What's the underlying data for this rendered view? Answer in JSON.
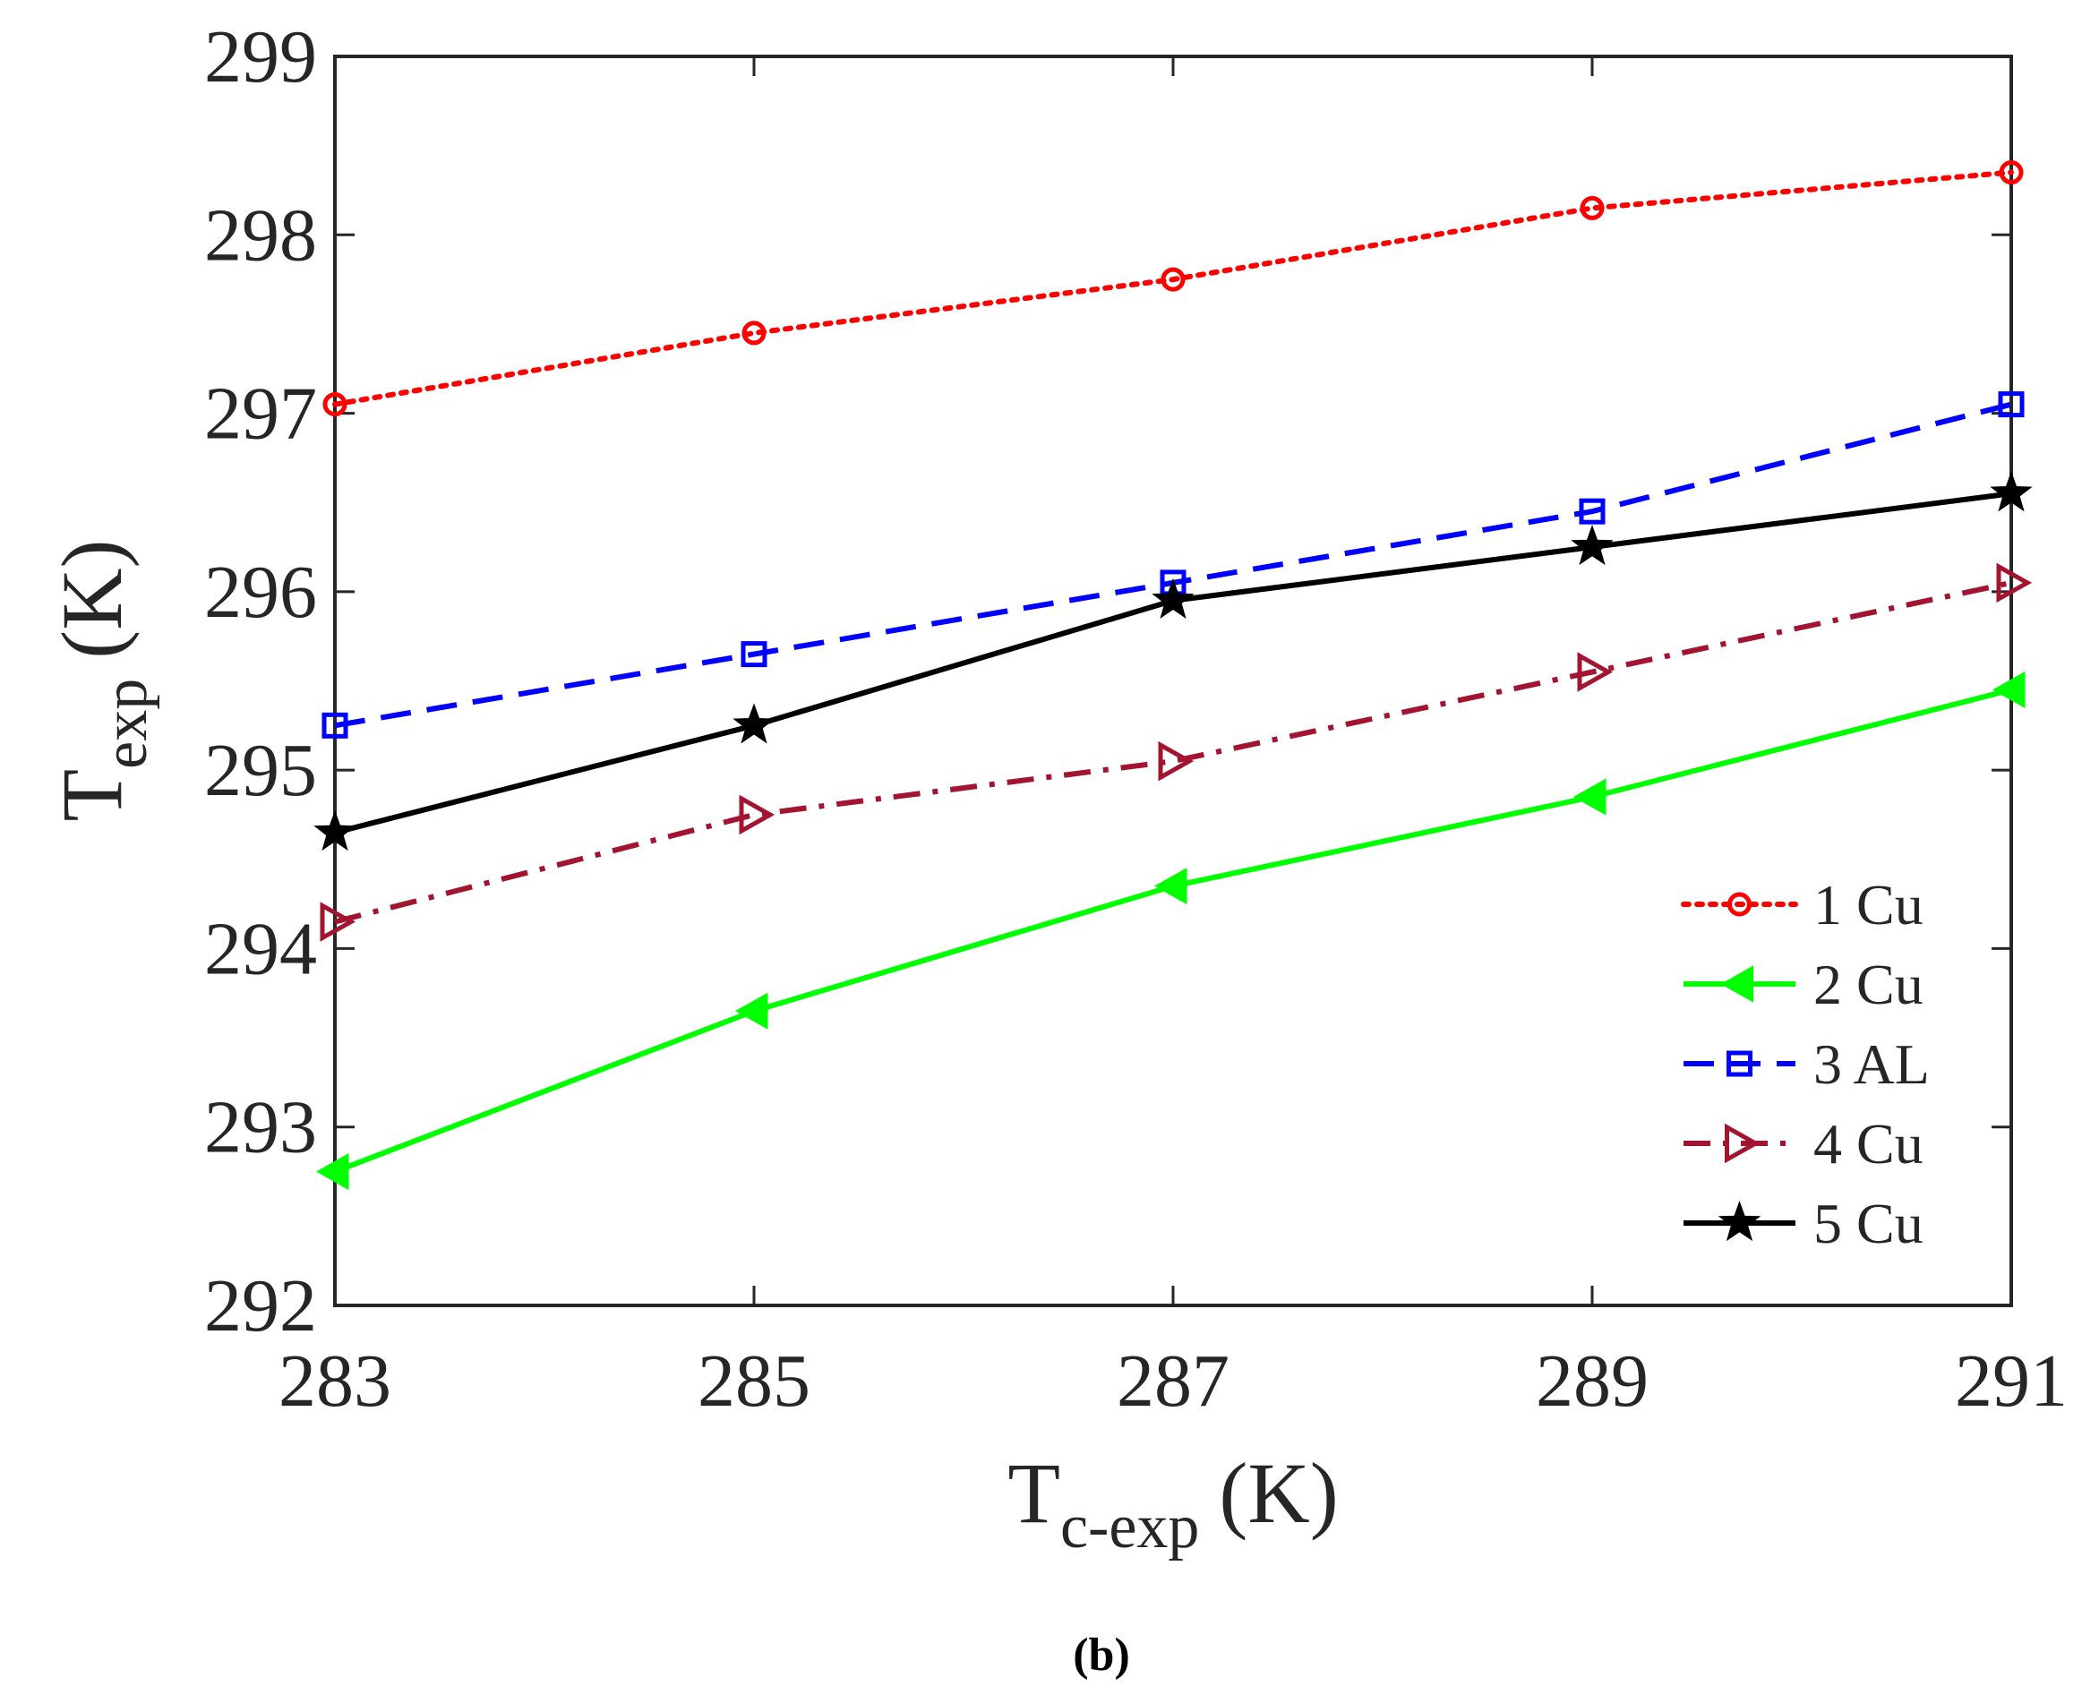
{
  "chart_data": {
    "type": "line",
    "title": "",
    "xlabel": "T",
    "xlabel_sub": "c-exp",
    "xlabel_unit": "(K)",
    "ylabel": "T",
    "ylabel_sub": "exp",
    "ylabel_unit": "(K)",
    "xlim": [
      283,
      291
    ],
    "ylim": [
      292,
      299
    ],
    "xticks": [
      "283",
      "285",
      "287",
      "289",
      "291"
    ],
    "yticks": [
      "292",
      "293",
      "294",
      "295",
      "296",
      "297",
      "298",
      "299"
    ],
    "x": [
      283,
      285,
      287,
      289,
      291
    ],
    "grid": false,
    "legend_position": "bottom-right",
    "series": [
      {
        "name": "1 Cu",
        "values": [
          297.05,
          297.45,
          297.75,
          298.15,
          298.35
        ],
        "color": "#ff0000",
        "dash": "dotted",
        "marker": "circle"
      },
      {
        "name": "2 Cu",
        "values": [
          292.75,
          293.65,
          294.35,
          294.85,
          295.45
        ],
        "color": "#00ff00",
        "dash": "solid",
        "marker": "triangle-left"
      },
      {
        "name": "3 AL",
        "values": [
          295.25,
          295.65,
          296.05,
          296.45,
          297.05
        ],
        "color": "#0000ff",
        "dash": "dashed",
        "marker": "square"
      },
      {
        "name": "4 Cu",
        "values": [
          294.15,
          294.75,
          295.05,
          295.55,
          296.05
        ],
        "color": "#a2142f",
        "dash": "dashdot",
        "marker": "triangle-right"
      },
      {
        "name": "5 Cu",
        "values": [
          294.65,
          295.25,
          295.95,
          296.25,
          296.55
        ],
        "color": "#000000",
        "dash": "solid",
        "marker": "star"
      }
    ]
  },
  "caption": "(b)"
}
